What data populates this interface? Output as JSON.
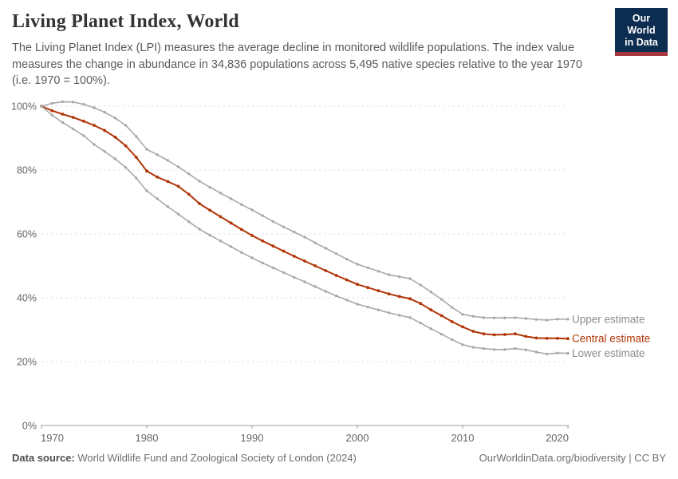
{
  "header": {
    "title": "Living Planet Index, World",
    "subtitle": "The Living Planet Index (LPI) measures the average decline in monitored wildlife populations. The index value measures the change in abundance in 34,836 populations across 5,495 native species relative to the year 1970 (i.e. 1970 = 100%).",
    "logo": {
      "line1": "Our World",
      "line2": "in Data",
      "bg_color": "#0d2d50",
      "stripe_color": "#a5343c"
    }
  },
  "chart_data": {
    "type": "line",
    "title": "Living Planet Index, World",
    "xlabel": "",
    "ylabel": "",
    "xlim": [
      1970,
      2020
    ],
    "ylim": [
      0,
      105
    ],
    "grid": "horizontal-dashed",
    "legend_position": "right-of-line-ends",
    "x_ticks": [
      1970,
      1980,
      1990,
      2000,
      2010,
      2020
    ],
    "y_ticks": [
      {
        "value": 0,
        "label": "0%"
      },
      {
        "value": 20,
        "label": "20%"
      },
      {
        "value": 40,
        "label": "40%"
      },
      {
        "value": 60,
        "label": "60%"
      },
      {
        "value": 80,
        "label": "80%"
      },
      {
        "value": 100,
        "label": "100%"
      }
    ],
    "x": [
      1970,
      1971,
      1972,
      1973,
      1974,
      1975,
      1976,
      1977,
      1978,
      1979,
      1980,
      1981,
      1982,
      1983,
      1984,
      1985,
      1986,
      1987,
      1988,
      1989,
      1990,
      1991,
      1992,
      1993,
      1994,
      1995,
      1996,
      1997,
      1998,
      1999,
      2000,
      2001,
      2002,
      2003,
      2004,
      2005,
      2006,
      2007,
      2008,
      2009,
      2010,
      2011,
      2012,
      2013,
      2014,
      2015,
      2016,
      2017,
      2018,
      2019,
      2020
    ],
    "series": [
      {
        "name": "Upper estimate",
        "color": "#a9a9a9",
        "label_color": "#8b8b8b",
        "values": [
          100,
          100.9,
          101.4,
          101.3,
          100.6,
          99.5,
          98.1,
          96.3,
          94.0,
          90.5,
          86.5,
          84.8,
          83.0,
          81.0,
          78.8,
          76.5,
          74.6,
          72.8,
          71.0,
          69.2,
          67.5,
          65.7,
          63.9,
          62.2,
          60.6,
          59.0,
          57.2,
          55.5,
          53.8,
          52.1,
          50.5,
          49.4,
          48.3,
          47.2,
          46.6,
          46.0,
          44.0,
          41.8,
          39.5,
          37.0,
          34.8,
          34.2,
          33.8,
          33.7,
          33.7,
          33.8,
          33.5,
          33.2,
          33.0,
          33.3,
          33.3
        ]
      },
      {
        "name": "Central estimate",
        "color": "#b13507",
        "label_color": "#b13507",
        "values": [
          100,
          98.6,
          97.5,
          96.5,
          95.3,
          94.0,
          92.4,
          90.3,
          87.6,
          84.0,
          79.7,
          77.8,
          76.4,
          74.9,
          72.4,
          69.5,
          67.4,
          65.4,
          63.4,
          61.4,
          59.5,
          57.8,
          56.2,
          54.6,
          53.0,
          51.5,
          50.0,
          48.5,
          47.0,
          45.6,
          44.2,
          43.2,
          42.2,
          41.2,
          40.4,
          39.7,
          38.2,
          36.2,
          34.4,
          32.5,
          30.9,
          29.5,
          28.7,
          28.4,
          28.5,
          28.7,
          27.9,
          27.4,
          27.3,
          27.3,
          27.2
        ]
      },
      {
        "name": "Lower estimate",
        "color": "#a9a9a9",
        "label_color": "#8b8b8b",
        "values": [
          100,
          97.2,
          94.9,
          92.9,
          90.8,
          88.0,
          85.8,
          83.5,
          80.8,
          77.5,
          73.5,
          71.0,
          68.5,
          66.2,
          63.8,
          61.5,
          59.6,
          57.8,
          56.0,
          54.2,
          52.5,
          50.9,
          49.4,
          47.9,
          46.4,
          45.0,
          43.5,
          42.0,
          40.6,
          39.3,
          38.0,
          37.1,
          36.2,
          35.3,
          34.5,
          33.8,
          32.1,
          30.3,
          28.6,
          26.9,
          25.3,
          24.5,
          24.1,
          23.8,
          23.8,
          24.1,
          23.7,
          23.0,
          22.4,
          22.7,
          22.6
        ]
      }
    ]
  },
  "footer": {
    "source_label": "Data source:",
    "source_text": " World Wildlife Fund and Zoological Society of London (2024)",
    "link_text": "OurWorldinData.org/biodiversity",
    "separator": " | ",
    "license_text": "CC BY"
  },
  "style": {
    "gridline_color": "#dcdcdc",
    "axis_color": "#9e9e9e",
    "tick_label_color": "#666666"
  }
}
